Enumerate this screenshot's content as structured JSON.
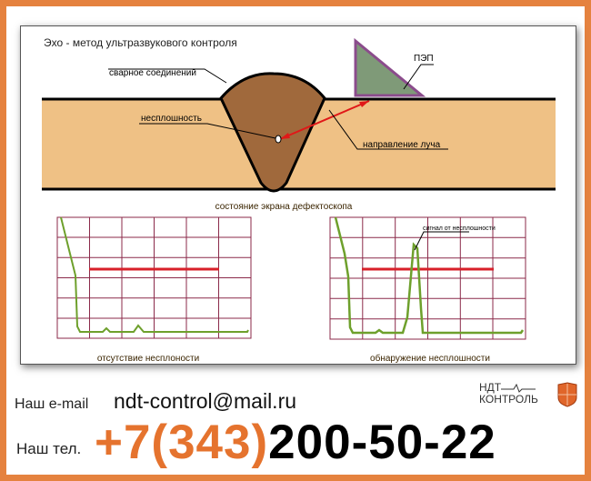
{
  "diagram": {
    "title": "Эхо - метод ультразвукового контроля",
    "label_weld": "сварное соединений",
    "label_probe": "ПЭП",
    "label_defect": "несплошность",
    "label_beam": "направление луча",
    "screen_caption": "состояние экрана дефектоскопа",
    "screen_left_caption": "отсутствие несплоности",
    "screen_right_caption": "обнаружение несплошности",
    "signal_label": "сигнал от несплошности",
    "colors": {
      "plate": "#efc185",
      "weld": "#a0693c",
      "probe": "#7f9a78",
      "probe_border": "#8b4c8c",
      "beam": "#e01818",
      "grid": "#8b2a4a",
      "signal": "#6ea02c",
      "threshold": "#d8202a"
    }
  },
  "contact": {
    "email_label": "Наш e-mail",
    "email": "ndt-control@mail.ru",
    "tel_label": "Наш тел.",
    "phone_code": "+7(343)",
    "phone_number": "200-50-22"
  },
  "logo": {
    "line1": "НДТ",
    "line2": "КОНТРОЛЬ",
    "icon": "shield-icon"
  }
}
